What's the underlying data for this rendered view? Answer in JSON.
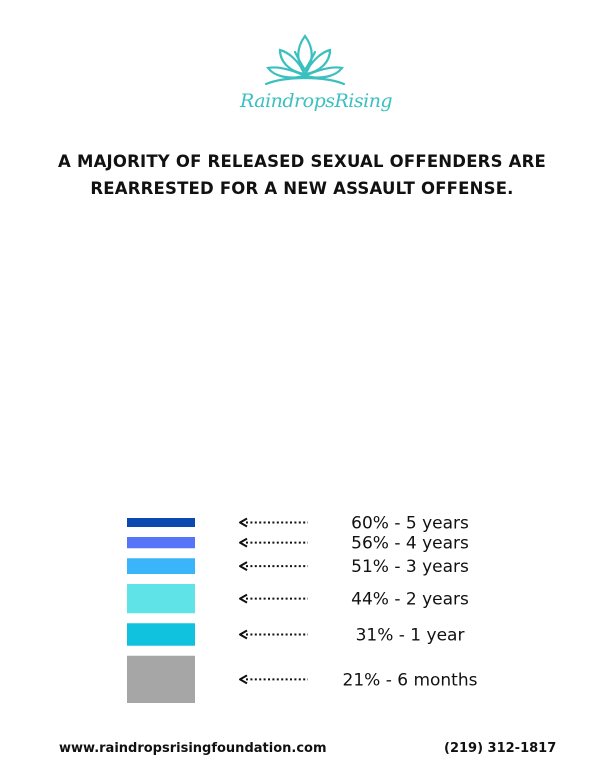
{
  "brand": {
    "logo_text": "RaindropsRising",
    "logo_color": "#3bbfbf"
  },
  "headline": {
    "line1": "A MAJORITY OF RELEASED SEXUAL OFFENDERS ARE",
    "line2": "REARRESTED FOR A NEW ASSAULT OFFENSE."
  },
  "chart_data": {
    "type": "bar",
    "orientation": "stacked-vertical",
    "categories": [
      "6 months",
      "1 year",
      "2 years",
      "3 years",
      "4 years",
      "5 years"
    ],
    "values": [
      21,
      31,
      44,
      51,
      56,
      60
    ],
    "unit": "%",
    "labels": [
      "21% - 6 months",
      "31% - 1 year",
      "44% - 2 years",
      "51% - 3 years",
      "56% - 4 years",
      "60% - 5 years"
    ],
    "colors": [
      "#a6a6a6",
      "#11c2df",
      "#60e3e6",
      "#3ab4fa",
      "#5674f8",
      "#0b49b1"
    ],
    "label_arrows": true,
    "title": "A MAJORITY OF RELEASED SEXUAL OFFENDERS ARE REARRESTED FOR A NEW ASSAULT OFFENSE.",
    "xlabel": "",
    "ylabel": ""
  },
  "footer": {
    "url": "www.raindropsrisingfoundation.com",
    "phone": "(219) 312-1817"
  }
}
